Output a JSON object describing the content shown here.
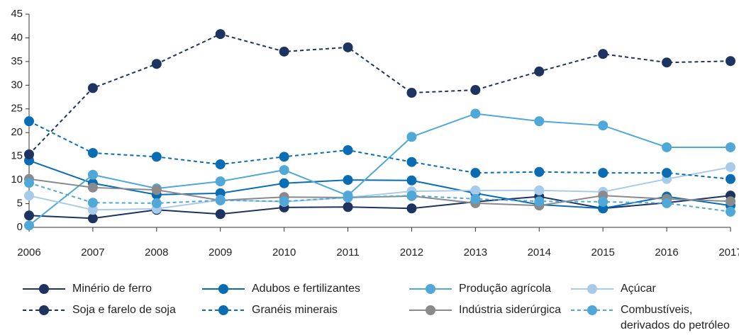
{
  "chart_data": {
    "type": "line",
    "x": [
      2006,
      2007,
      2008,
      2009,
      2010,
      2011,
      2012,
      2013,
      2014,
      2015,
      2016,
      2017
    ],
    "xlim": [
      2006,
      2017
    ],
    "xticks": [
      2006,
      2007,
      2008,
      2009,
      2010,
      2011,
      2012,
      2013,
      2014,
      2015,
      2016,
      2017
    ],
    "ylim": [
      0,
      45
    ],
    "yticks": [
      0,
      5,
      10,
      15,
      20,
      25,
      30,
      35,
      40,
      45
    ],
    "grid": false,
    "legend": "bottom",
    "series": [
      {
        "name": "Minério de ferro",
        "color": "#1d3461",
        "line_style": "solid",
        "values": [
          2.5,
          1.9,
          3.7,
          2.8,
          4.2,
          4.3,
          4.0,
          5.4,
          6.5,
          4.0,
          5.2,
          6.7
        ]
      },
      {
        "name": "Adubos e fertilizantes",
        "color": "#0a6db3",
        "line_style": "solid",
        "values": [
          14.1,
          9.3,
          6.9,
          7.2,
          9.3,
          10.0,
          9.9,
          7.2,
          4.8,
          4.0,
          6.5,
          4.6
        ]
      },
      {
        "name": "Produção agrícola",
        "color": "#4fa8d8",
        "line_style": "solid",
        "values": [
          0.4,
          11.1,
          8.2,
          9.7,
          12.1,
          6.7,
          19.1,
          24.0,
          22.4,
          21.5,
          16.9,
          16.9
        ]
      },
      {
        "name": "Açúcar",
        "color": "#a9cbea",
        "line_style": "solid",
        "values": [
          6.7,
          3.7,
          3.9,
          5.8,
          5.4,
          6.3,
          7.6,
          7.8,
          7.8,
          7.5,
          10.2,
          12.7
        ]
      },
      {
        "name": "Soja e farelo de soja",
        "color": "#1d3461",
        "line_style": "dashed",
        "values": [
          15.4,
          29.4,
          34.5,
          40.8,
          37.1,
          38.0,
          28.4,
          29.0,
          32.9,
          36.6,
          34.8,
          35.1
        ]
      },
      {
        "name": "Granéis minerais",
        "color": "#0a6db3",
        "line_style": "dashed",
        "values": [
          22.4,
          15.7,
          14.9,
          13.3,
          14.9,
          16.3,
          13.8,
          11.5,
          11.7,
          11.5,
          11.5,
          10.2
        ]
      },
      {
        "name": "Indústria siderúrgica",
        "color": "#8a8a8d",
        "line_style": "solid",
        "values": [
          10.2,
          8.4,
          7.9,
          5.7,
          6.4,
          6.3,
          6.6,
          5.1,
          4.6,
          6.7,
          6.0,
          5.5
        ]
      },
      {
        "name": "Combustíveis, derivados do petróleo e álcool",
        "color": "#4fa8d8",
        "line_style": "dashed",
        "values": [
          9.4,
          5.2,
          5.1,
          5.7,
          5.5,
          6.3,
          6.7,
          6.0,
          5.5,
          5.4,
          5.1,
          3.3
        ]
      }
    ]
  }
}
